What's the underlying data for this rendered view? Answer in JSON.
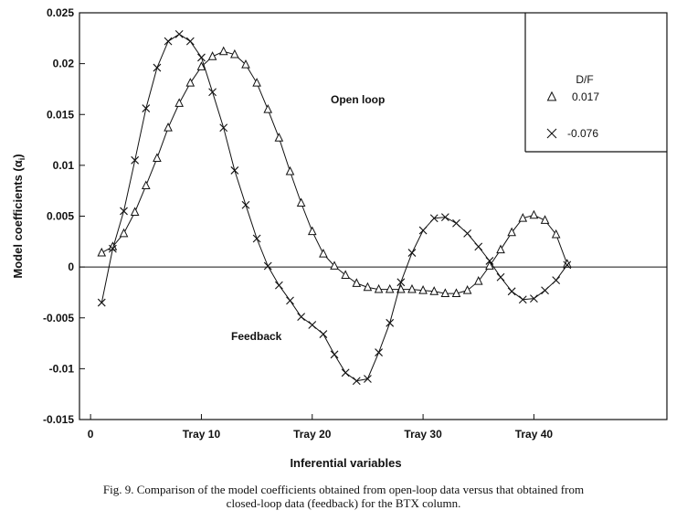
{
  "chart_data": {
    "type": "line",
    "ylabel": "Model coefficients (α_i)",
    "xlabel": "Inferential variables",
    "y_ticks": [
      "0.025",
      "0.02",
      "0.015",
      "0.01",
      "0.005",
      "0",
      "-0.005",
      "-0.01",
      "-0.015"
    ],
    "x_ticks": [
      {
        "x": 0,
        "label": "0"
      },
      {
        "x": 10,
        "label": "Tray 10"
      },
      {
        "x": 20,
        "label": "Tray 20"
      },
      {
        "x": 30,
        "label": "Tray 30"
      },
      {
        "x": 40,
        "label": "Tray 40"
      }
    ],
    "xlim": [
      -1,
      52
    ],
    "ylim": [
      -0.015,
      0.025
    ],
    "zero_line": true,
    "grid": false,
    "annotations": [
      "Open loop",
      "Feedback"
    ],
    "legend": {
      "title": "D/F",
      "placement": "top-right"
    },
    "series": [
      {
        "name": "0.017",
        "marker": "triangle",
        "x": [
          1,
          2,
          3,
          4,
          5,
          6,
          7,
          8,
          9,
          10,
          11,
          12,
          13,
          14,
          15,
          16,
          17,
          18,
          19,
          20,
          21,
          22,
          23,
          24,
          25,
          26,
          27,
          28,
          29,
          30,
          31,
          32,
          33,
          34,
          35,
          36,
          37,
          38,
          39,
          40,
          41,
          42,
          43
        ],
        "y": [
          0.0014,
          0.002,
          0.0033,
          0.0054,
          0.008,
          0.0107,
          0.0137,
          0.0161,
          0.0181,
          0.0197,
          0.0207,
          0.0212,
          0.0209,
          0.0199,
          0.0181,
          0.0155,
          0.0127,
          0.0094,
          0.0063,
          0.0035,
          0.0013,
          0.0001,
          -0.0008,
          -0.0016,
          -0.002,
          -0.0022,
          -0.0022,
          -0.0022,
          -0.0022,
          -0.0023,
          -0.0024,
          -0.0026,
          -0.0026,
          -0.0023,
          -0.0014,
          0.0001,
          0.0017,
          0.0034,
          0.0048,
          0.0051,
          0.0046,
          0.0032,
          0.0003
        ]
      },
      {
        "name": "-0.076",
        "marker": "x",
        "x": [
          1,
          2,
          3,
          4,
          5,
          6,
          7,
          8,
          9,
          10,
          11,
          12,
          13,
          14,
          15,
          16,
          17,
          18,
          19,
          20,
          21,
          22,
          23,
          24,
          25,
          26,
          27,
          28,
          29,
          30,
          31,
          32,
          33,
          34,
          35,
          36,
          37,
          38,
          39,
          40,
          41,
          42,
          43
        ],
        "y": [
          -0.0035,
          0.0018,
          0.0055,
          0.0105,
          0.0156,
          0.0196,
          0.0222,
          0.0229,
          0.0222,
          0.0206,
          0.0172,
          0.0137,
          0.0095,
          0.0061,
          0.0028,
          0.0001,
          -0.0018,
          -0.0033,
          -0.0049,
          -0.0057,
          -0.0066,
          -0.0086,
          -0.0104,
          -0.0112,
          -0.011,
          -0.0084,
          -0.0055,
          -0.0015,
          0.0014,
          0.0036,
          0.0048,
          0.0049,
          0.0043,
          0.0033,
          0.002,
          0.0006,
          -0.001,
          -0.0024,
          -0.0032,
          -0.0031,
          -0.0023,
          -0.0013,
          0.0002
        ]
      }
    ]
  },
  "caption": {
    "line1": "Fig. 9.  Comparison of the model coefficients obtained from open-loop data versus that obtained from",
    "line2": "closed-loop data (feedback) for the BTX column."
  }
}
